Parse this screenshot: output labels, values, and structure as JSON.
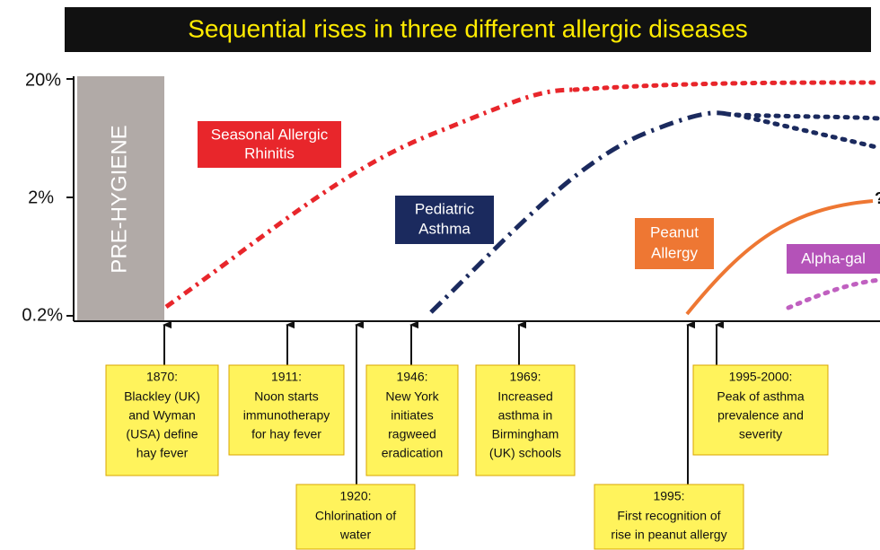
{
  "title": "Sequential rises in three different allergic diseases",
  "y_axis": {
    "ticks": [
      "20%",
      "2%",
      "0.2%"
    ]
  },
  "band": "PRE-HYGIENE",
  "curve_labels": {
    "rhinitis": [
      "Seasonal Allergic",
      "Rhinitis"
    ],
    "asthma": [
      "Pediatric",
      "Asthma"
    ],
    "peanut": [
      "Peanut",
      "Allergy"
    ],
    "alphagal": [
      "Alpha-gal"
    ],
    "question": "?"
  },
  "events": [
    {
      "year": "1870:",
      "lines": [
        "Blackley (UK)",
        "and Wyman",
        "(USA) define",
        "hay fever"
      ]
    },
    {
      "year": "1911:",
      "lines": [
        "Noon starts",
        "immunotherapy",
        "for hay fever"
      ]
    },
    {
      "year": "1920:",
      "lines": [
        "Chlorination of",
        "water"
      ]
    },
    {
      "year": "1946:",
      "lines": [
        "New York",
        "initiates",
        "ragweed",
        "eradication"
      ]
    },
    {
      "year": "1969:",
      "lines": [
        "Increased",
        "asthma in",
        "Birmingham",
        "(UK) schools"
      ]
    },
    {
      "year": "1995:",
      "lines": [
        "First recognition of",
        "rise in peanut allergy"
      ]
    },
    {
      "year": "1995-2000:",
      "lines": [
        "Peak of asthma",
        "prevalence and",
        "severity"
      ]
    }
  ]
}
